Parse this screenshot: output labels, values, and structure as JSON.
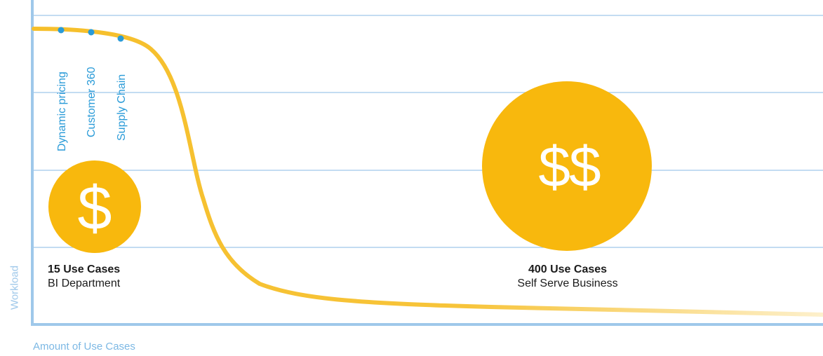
{
  "chart_data": {
    "type": "line",
    "title": "",
    "xlabel": "Amount of Use Cases",
    "ylabel": "Workload",
    "grid": true,
    "series": [
      {
        "values": []
      }
    ],
    "annotations": {
      "cases": [
        "Dynamic pricing",
        "Customer 360",
        "Supply Chain"
      ],
      "left_coin_symbol": "$",
      "right_coin_symbol": "$$",
      "left_title": "15 Use Cases",
      "left_subtitle": "BI Department",
      "right_title": "400 Use Cases",
      "right_subtitle": "Self Serve Business"
    },
    "colors": {
      "axis": "#9fc8ea",
      "grid": "#9fc8ea",
      "curve": "#f6bf2a",
      "coin": "#f8b80d",
      "marker": "#2a9bd8"
    }
  }
}
